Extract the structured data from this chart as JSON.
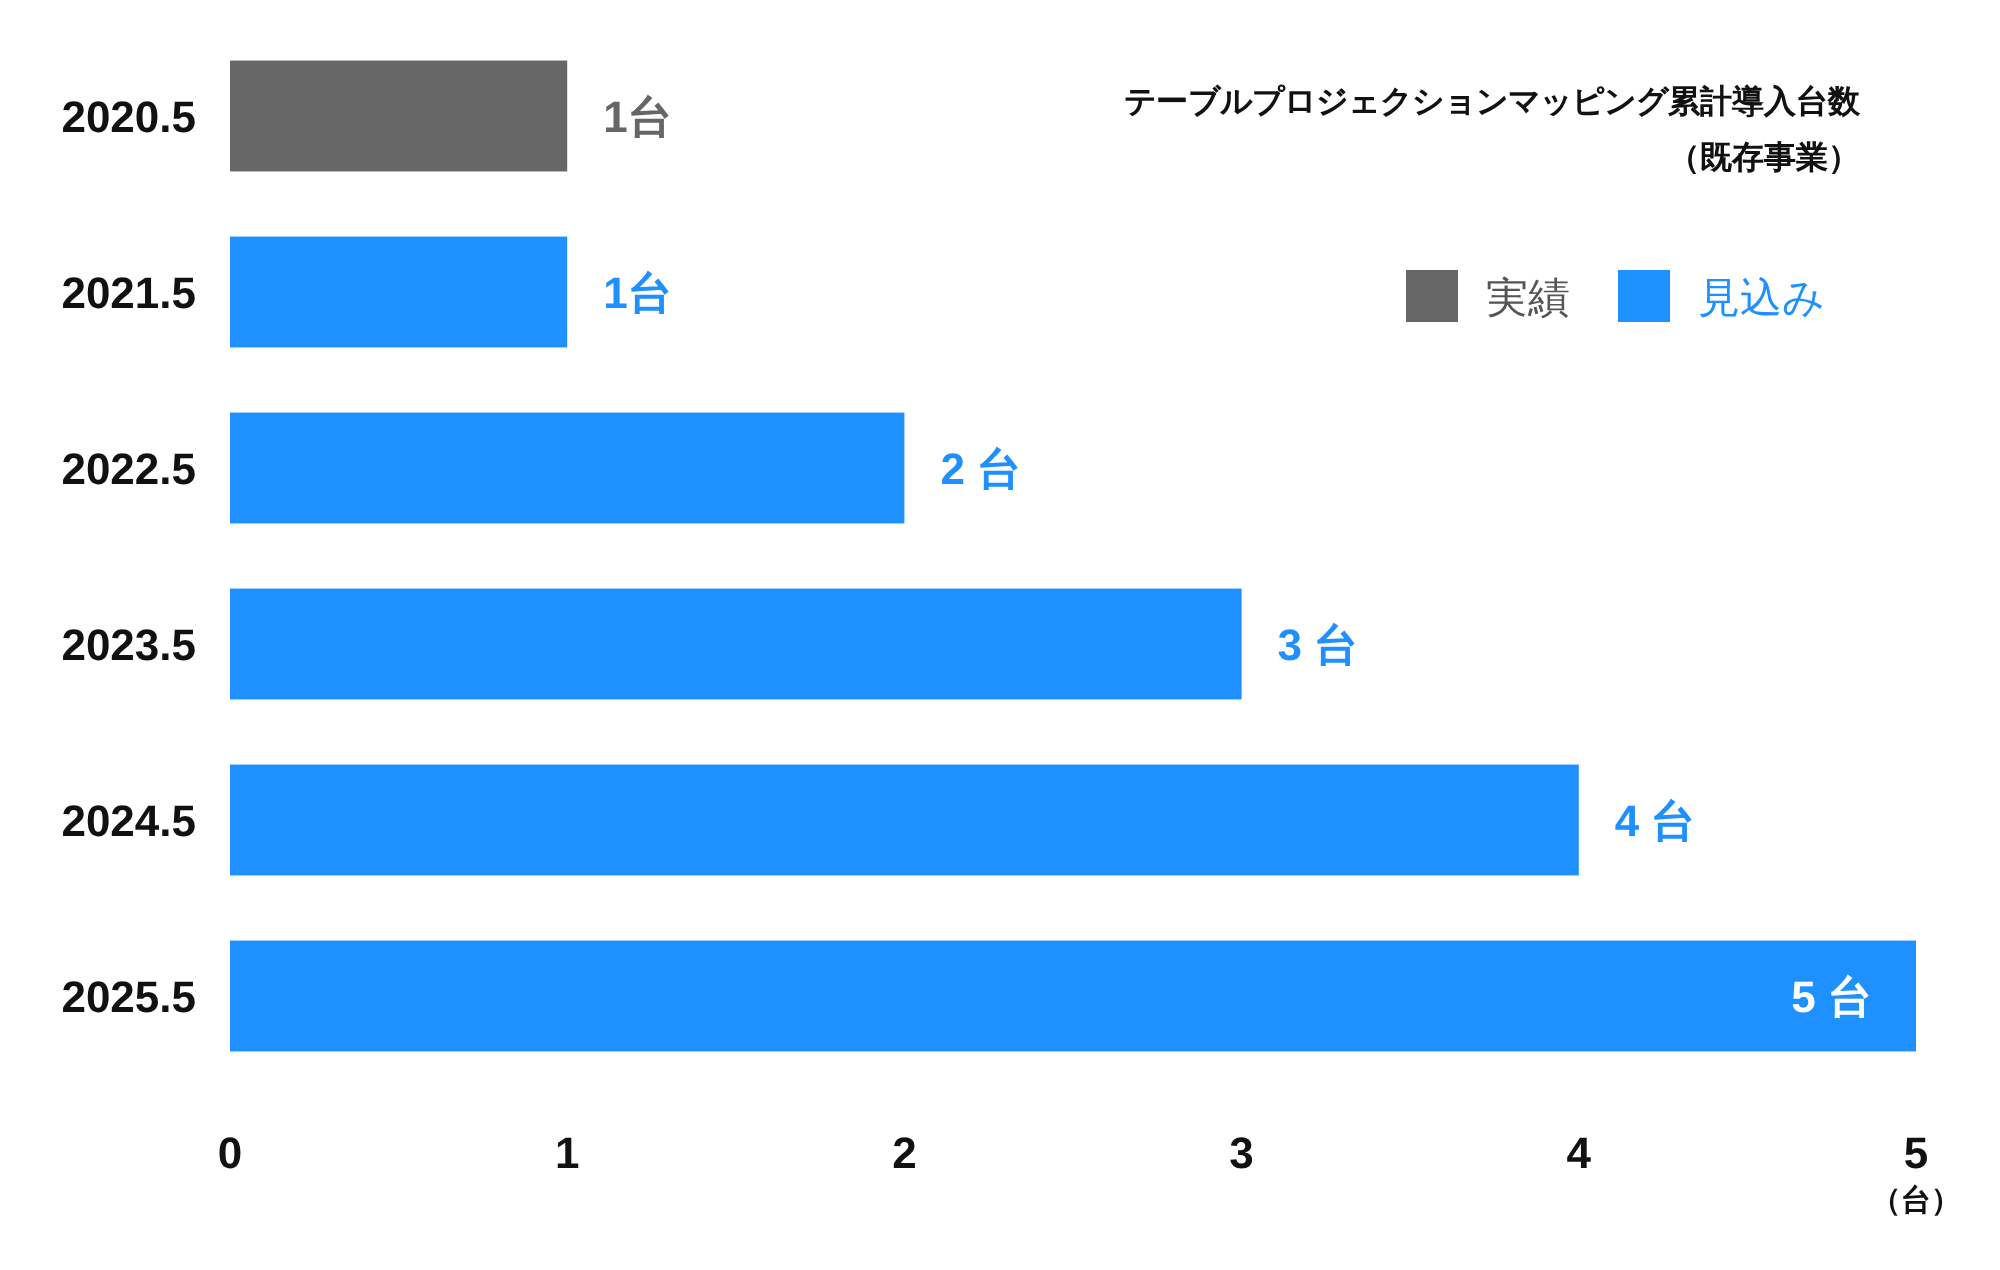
{
  "chart_data": {
    "type": "bar",
    "orientation": "horizontal",
    "title": "テーブルプロジェクションマッピング累計導入台数",
    "subtitle": "（既存事業）",
    "xlabel": "（台）",
    "categories": [
      "2020.5",
      "2021.5",
      "2022.5",
      "2023.5",
      "2024.5",
      "2025.5"
    ],
    "series": [
      {
        "name": "実績",
        "color": "#666666",
        "values": [
          1,
          null,
          null,
          null,
          null,
          null
        ],
        "value_labels": [
          "1台",
          null,
          null,
          null,
          null,
          null
        ]
      },
      {
        "name": "見込み",
        "color": "#1e90ff",
        "values": [
          null,
          1,
          2,
          3,
          4,
          5
        ],
        "value_labels": [
          null,
          "1台",
          "2 台",
          "3 台",
          "4 台",
          "5 台"
        ]
      }
    ],
    "xlim": [
      0,
      5
    ],
    "xticks": [
      0,
      1,
      2,
      3,
      4,
      5
    ],
    "legend": "top right"
  }
}
